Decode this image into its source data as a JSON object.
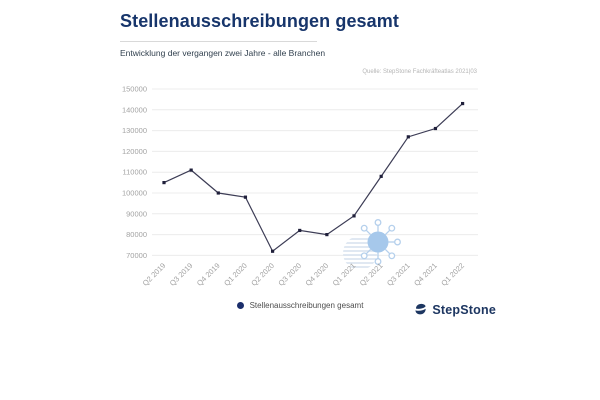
{
  "header": {
    "title": "Stellenausschreibungen gesamt",
    "subtitle": "Entwicklung der vergangen zwei Jahre - alle Branchen"
  },
  "source_note": "Quelle: StepStone Fachkräfteatlas 2021|03",
  "chart_data": {
    "type": "line",
    "title": "Stellenausschreibungen gesamt",
    "subtitle": "Entwicklung der vergangen zwei Jahre - alle Branchen",
    "categories": [
      "Q2 2019",
      "Q3 2019",
      "Q4 2019",
      "Q1 2020",
      "Q2 2020",
      "Q3 2020",
      "Q4 2020",
      "Q1 2021",
      "Q2 2021",
      "Q3 2021",
      "Q4 2021",
      "Q1 2022"
    ],
    "series": [
      {
        "name": "Stellenausschreibungen gesamt",
        "values": [
          105000,
          111000,
          100000,
          98000,
          72000,
          82000,
          80000,
          89000,
          108000,
          127000,
          131000,
          143000
        ]
      }
    ],
    "ylim": [
      70000,
      150000
    ],
    "ytick_step": 10000,
    "ytick_labels": [
      "70000",
      "80000",
      "90000",
      "100000",
      "110000",
      "120000",
      "130000",
      "140000",
      "150000"
    ],
    "grid": true,
    "legend_position": "bottom",
    "annotations": [
      "coronavirus watermark near Q1 2021"
    ],
    "line_color": "#3c3c55",
    "marker_color": "#20203b",
    "gridline_color": "#ececec",
    "axis_label_color": "#a3a3a3"
  },
  "legend": {
    "label": "Stellenausschreibungen gesamt",
    "marker_color": "#1b2e6b"
  },
  "footer": {
    "logo_text": "StepStone"
  },
  "colors": {
    "title": "#17356b",
    "brand_navy": "#1d3661",
    "virus_blue": "#a6c8eb"
  }
}
